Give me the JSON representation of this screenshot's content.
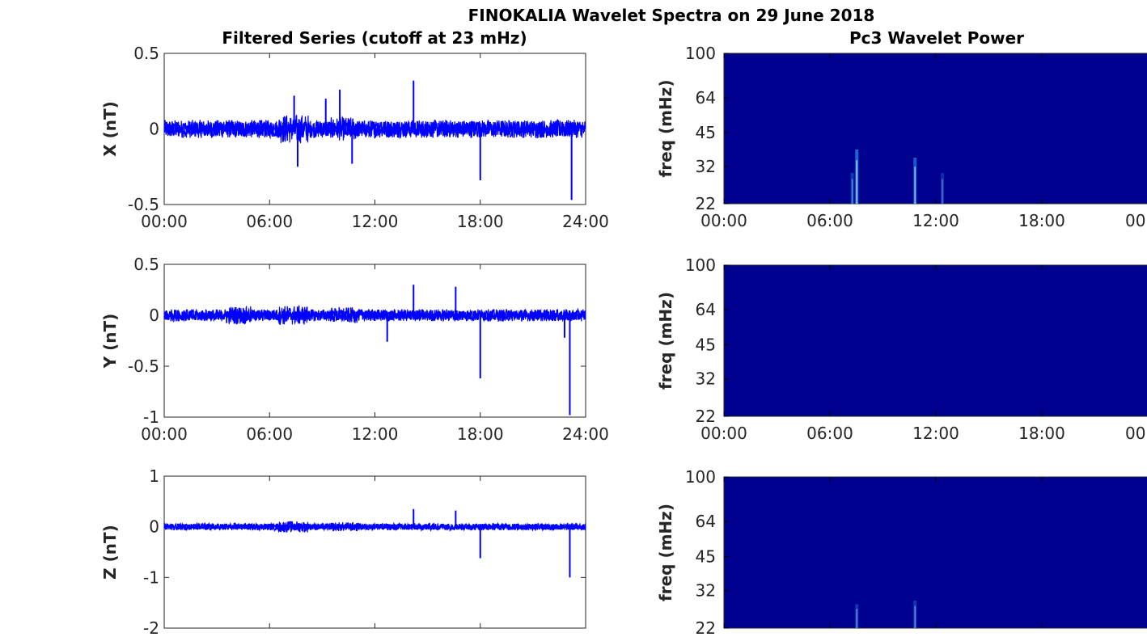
{
  "figure": {
    "title": "FINOKALIA Wavelet Spectra on 29 June 2018",
    "left_title": "Filtered Series (cutoff at 23 mHz)",
    "right_title": "Pc3 Wavelet Power"
  },
  "colors": {
    "series": "#0000ff",
    "spectrum_bg": "#00008f",
    "spectrum_hot": "#1f6fd8",
    "axes": "#262626"
  },
  "chart_data": [
    {
      "type": "line",
      "panel": "X",
      "ylabel": "X (nT)",
      "xlim": [
        "00:00",
        "24:00"
      ],
      "ylim": [
        -0.5,
        0.5
      ],
      "xticks": [
        "00:00",
        "06:00",
        "12:00",
        "18:00",
        "24:00"
      ],
      "yticks": [
        "0.5",
        "0",
        "-0.5"
      ],
      "noise_amplitude": 0.06,
      "spikes": [
        {
          "t": 7.4,
          "v": 0.22
        },
        {
          "t": 7.6,
          "v": -0.25
        },
        {
          "t": 10.0,
          "v": 0.26
        },
        {
          "t": 10.7,
          "v": -0.23
        },
        {
          "t": 14.2,
          "v": 0.32
        },
        {
          "t": 18.0,
          "v": -0.34
        },
        {
          "t": 23.2,
          "v": -0.47
        },
        {
          "t": 9.2,
          "v": 0.2
        }
      ],
      "series": [
        {
          "values_note": "filtered geomagnetic X component"
        }
      ]
    },
    {
      "type": "line",
      "panel": "Y",
      "ylabel": "Y (nT)",
      "xlim": [
        "00:00",
        "24:00"
      ],
      "ylim": [
        -1,
        0.5
      ],
      "xticks": [
        "00:00",
        "06:00",
        "12:00",
        "18:00",
        "24:00"
      ],
      "yticks": [
        "0.5",
        "0",
        "-0.5",
        "-1"
      ],
      "noise_amplitude": 0.06,
      "spikes": [
        {
          "t": 12.7,
          "v": -0.26
        },
        {
          "t": 14.2,
          "v": 0.3
        },
        {
          "t": 16.6,
          "v": 0.28
        },
        {
          "t": 18.0,
          "v": -0.62
        },
        {
          "t": 22.8,
          "v": -0.22
        },
        {
          "t": 23.1,
          "v": -0.98
        }
      ]
    },
    {
      "type": "line",
      "panel": "Z",
      "ylabel": "Z (nT)",
      "xlim": [
        "00:00",
        "24:00"
      ],
      "ylim": [
        -2,
        1
      ],
      "xticks": [
        "",
        "",
        "",
        "",
        ""
      ],
      "yticks": [
        "1",
        "0",
        "-1",
        "-2"
      ],
      "noise_amplitude": 0.07,
      "spikes": [
        {
          "t": 14.2,
          "v": 0.35
        },
        {
          "t": 16.6,
          "v": 0.32
        },
        {
          "t": 18.0,
          "v": -0.62
        },
        {
          "t": 23.1,
          "v": -1.0
        }
      ]
    },
    {
      "type": "heatmap",
      "panel": "X-power",
      "ylabel": "freq (mHz)",
      "yticks": [
        "100",
        "64",
        "45",
        "32",
        "22"
      ],
      "xticks": [
        "00:00",
        "06:00",
        "12:00",
        "18:00",
        "00"
      ],
      "hot_spots": [
        {
          "t": 7.3,
          "f_low": 22,
          "f_high": 38,
          "strength": 0.9
        },
        {
          "t": 7.05,
          "f_low": 22,
          "f_high": 30,
          "strength": 0.5
        },
        {
          "t": 10.5,
          "f_low": 22,
          "f_high": 35,
          "strength": 0.8
        },
        {
          "t": 12.0,
          "f_low": 22,
          "f_high": 30,
          "strength": 0.4
        }
      ]
    },
    {
      "type": "heatmap",
      "panel": "Y-power",
      "ylabel": "freq (mHz)",
      "yticks": [
        "100",
        "64",
        "45",
        "32",
        "22"
      ],
      "xticks": [
        "00:00",
        "06:00",
        "12:00",
        "18:00",
        "00"
      ],
      "hot_spots": []
    },
    {
      "type": "heatmap",
      "panel": "Z-power",
      "ylabel": "freq (mHz)",
      "yticks": [
        "100",
        "64",
        "45",
        "32",
        "22"
      ],
      "xticks": [
        "",
        "",
        "",
        "",
        ""
      ],
      "hot_spots": [
        {
          "t": 7.3,
          "f_low": 22,
          "f_high": 28,
          "strength": 0.5
        },
        {
          "t": 10.5,
          "f_low": 22,
          "f_high": 29,
          "strength": 0.5
        }
      ]
    }
  ]
}
